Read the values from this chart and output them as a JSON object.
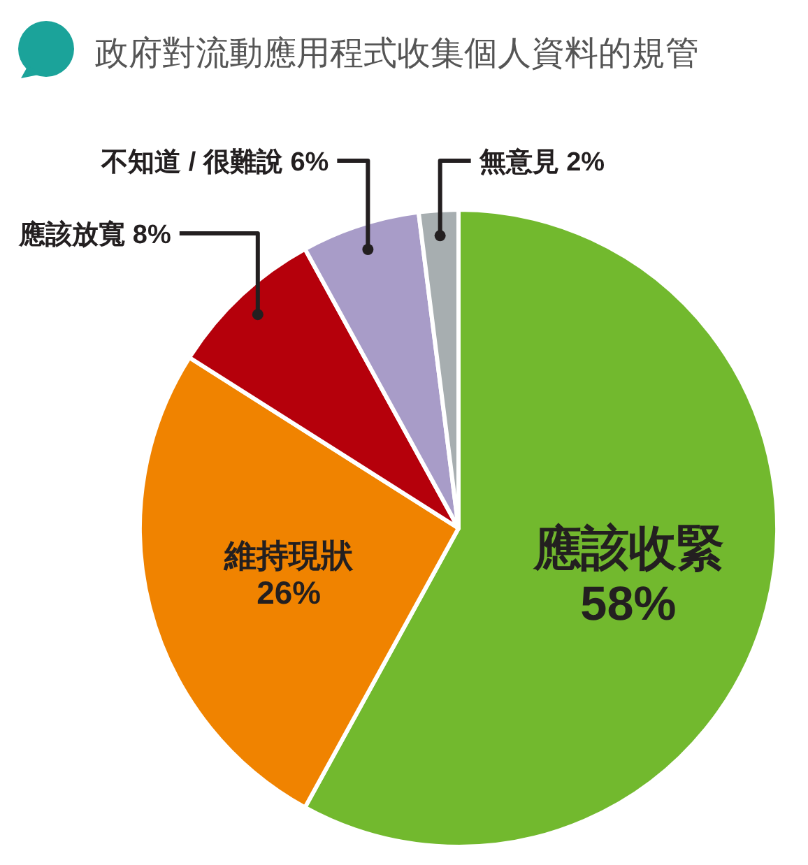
{
  "chart_data": {
    "type": "pie",
    "title": "政府對流動應用程式收集個人資料的規管",
    "categories": [
      "應該收緊",
      "維持現狀",
      "應該放寬",
      "不知道 / 很難說",
      "無意見"
    ],
    "values": [
      58,
      26,
      8,
      6,
      2
    ],
    "value_labels": [
      "58%",
      "26%",
      "8%",
      "6%",
      "2%"
    ],
    "colors": [
      "#72b92e",
      "#f08300",
      "#b5000b",
      "#a89cc8",
      "#a7aeb0"
    ]
  }
}
